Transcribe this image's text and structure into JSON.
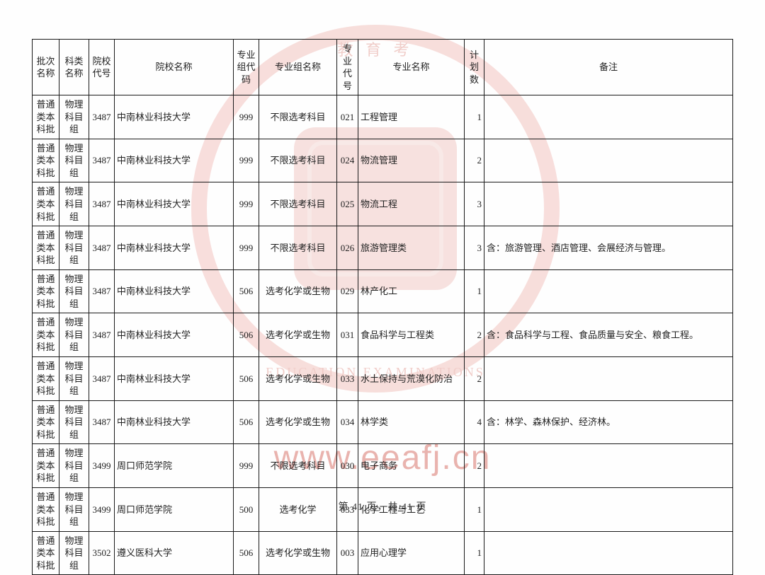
{
  "watermark": {
    "seal_top": "教 育 考",
    "seal_bottom": "EDUCATION EXAMINATIONS",
    "url": "www.eeafj.cn"
  },
  "table": {
    "header": {
      "batch": "批次名称",
      "subject": "科类名称",
      "school_code": "院校代号",
      "school_name": "院校名称",
      "group_code": "专业组代码",
      "group_name": "专业组名称",
      "major_code": "专业代号",
      "major_name": "专业名称",
      "plan": "计划数",
      "note": "备注"
    },
    "rows": [
      {
        "batch": "普通类本科批",
        "subject": "物理科目组",
        "school_code": "3487",
        "school_name": "中南林业科技大学",
        "group_code": "999",
        "group_name": "不限选考科目",
        "major_code": "021",
        "major_name": "工程管理",
        "plan": "1",
        "note": ""
      },
      {
        "batch": "普通类本科批",
        "subject": "物理科目组",
        "school_code": "3487",
        "school_name": "中南林业科技大学",
        "group_code": "999",
        "group_name": "不限选考科目",
        "major_code": "024",
        "major_name": "物流管理",
        "plan": "2",
        "note": ""
      },
      {
        "batch": "普通类本科批",
        "subject": "物理科目组",
        "school_code": "3487",
        "school_name": "中南林业科技大学",
        "group_code": "999",
        "group_name": "不限选考科目",
        "major_code": "025",
        "major_name": "物流工程",
        "plan": "3",
        "note": ""
      },
      {
        "batch": "普通类本科批",
        "subject": "物理科目组",
        "school_code": "3487",
        "school_name": "中南林业科技大学",
        "group_code": "999",
        "group_name": "不限选考科目",
        "major_code": "026",
        "major_name": "旅游管理类",
        "plan": "3",
        "note": "含：旅游管理、酒店管理、会展经济与管理。"
      },
      {
        "batch": "普通类本科批",
        "subject": "物理科目组",
        "school_code": "3487",
        "school_name": "中南林业科技大学",
        "group_code": "506",
        "group_name": "选考化学或生物",
        "major_code": "029",
        "major_name": "林产化工",
        "plan": "1",
        "note": ""
      },
      {
        "batch": "普通类本科批",
        "subject": "物理科目组",
        "school_code": "3487",
        "school_name": "中南林业科技大学",
        "group_code": "506",
        "group_name": "选考化学或生物",
        "major_code": "031",
        "major_name": "食品科学与工程类",
        "plan": "2",
        "note": "含：食品科学与工程、食品质量与安全、粮食工程。"
      },
      {
        "batch": "普通类本科批",
        "subject": "物理科目组",
        "school_code": "3487",
        "school_name": "中南林业科技大学",
        "group_code": "506",
        "group_name": "选考化学或生物",
        "major_code": "033",
        "major_name": "水土保持与荒漠化防治",
        "plan": "2",
        "note": ""
      },
      {
        "batch": "普通类本科批",
        "subject": "物理科目组",
        "school_code": "3487",
        "school_name": "中南林业科技大学",
        "group_code": "506",
        "group_name": "选考化学或生物",
        "major_code": "034",
        "major_name": "林学类",
        "plan": "4",
        "note": "含：林学、森林保护、经济林。"
      },
      {
        "batch": "普通类本科批",
        "subject": "物理科目组",
        "school_code": "3499",
        "school_name": "周口师范学院",
        "group_code": "999",
        "group_name": "不限选考科目",
        "major_code": "030",
        "major_name": "电子商务",
        "plan": "2",
        "note": ""
      },
      {
        "batch": "普通类本科批",
        "subject": "物理科目组",
        "school_code": "3499",
        "school_name": "周口师范学院",
        "group_code": "500",
        "group_name": "选考化学",
        "major_code": "033",
        "major_name": "化学工程与工艺",
        "plan": "1",
        "note": ""
      },
      {
        "batch": "普通类本科批",
        "subject": "物理科目组",
        "school_code": "3502",
        "school_name": "遵义医科大学",
        "group_code": "506",
        "group_name": "选考化学或生物",
        "major_code": "003",
        "major_name": "应用心理学",
        "plan": "1",
        "note": ""
      }
    ]
  },
  "pagination": {
    "text": "第 41 页，共 41 页"
  },
  "style": {
    "page_bg": "#fefefe",
    "border_color": "#1a1a1a",
    "text_color": "#222",
    "watermark_seal_color": "#f4cdc9",
    "watermark_url_color": "#e9b3ae",
    "font_family": "SimSun"
  }
}
